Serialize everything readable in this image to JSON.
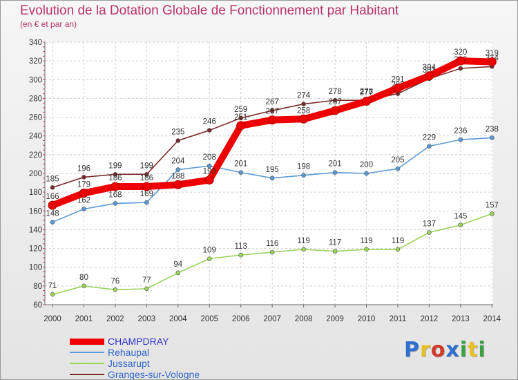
{
  "chart_data": {
    "type": "line",
    "title": "Evolution de la Dotation Globale de Fonctionnement par Habitant",
    "subtitle": "(en € et par an)",
    "xlabel": "",
    "ylabel": "",
    "ylim": [
      60,
      340
    ],
    "yticks": [
      60,
      80,
      100,
      120,
      140,
      160,
      180,
      200,
      220,
      240,
      260,
      280,
      300,
      320,
      340
    ],
    "categories": [
      "2000",
      "2001",
      "2002",
      "2003",
      "2004",
      "2005",
      "2006",
      "2007",
      "2008",
      "2009",
      "2010",
      "2011",
      "2012",
      "2013",
      "2014"
    ],
    "grid": true,
    "legend": "bottom-left",
    "series": [
      {
        "name": "Granges-sur-Vologne",
        "color": "#7b2a2a",
        "values": [
          185,
          196,
          199,
          199,
          235,
          246,
          259,
          267,
          274,
          278,
          278,
          285,
          301,
          312,
          314
        ]
      },
      {
        "name": "Rehaupal",
        "color": "#5a9ad6",
        "values": [
          148,
          162,
          168,
          169,
          204,
          208,
          201,
          195,
          198,
          201,
          200,
          205,
          229,
          236,
          238
        ]
      },
      {
        "name": "Jussarupt",
        "color": "#9ad45a",
        "values": [
          71,
          80,
          76,
          77,
          94,
          109,
          113,
          116,
          119,
          117,
          119,
          119,
          137,
          145,
          157
        ]
      },
      {
        "name": "CHAMPDRAY",
        "color": "#ee0000",
        "values": [
          166,
          179,
          186,
          186,
          188,
          193,
          251,
          257,
          258,
          267,
          277,
          291,
          304,
          320,
          319
        ]
      }
    ],
    "legend_order": [
      "CHAMPDRAY",
      "Rehaupal",
      "Jussarupt",
      "Granges-sur-Vologne"
    ]
  },
  "logo": {
    "letters": [
      "P",
      "r",
      "o",
      "x",
      "i",
      "t",
      "i"
    ],
    "colors": [
      "#2f6fd0",
      "#e8c020",
      "#d03a2a",
      "#2f6fd0",
      "#3aa040",
      "#e8c020",
      "#3aa040"
    ]
  }
}
